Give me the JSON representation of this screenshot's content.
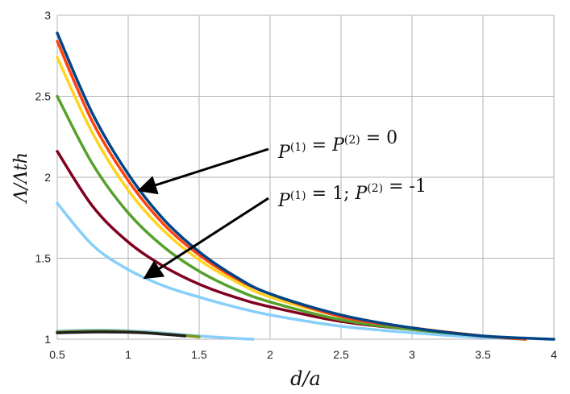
{
  "chart_data": {
    "type": "line",
    "xlabel": "d/a",
    "ylabel": "Λ/Λth",
    "xlim": [
      0.5,
      4
    ],
    "ylim": [
      1,
      3
    ],
    "x_ticks": [
      "0.5",
      "1",
      "1.5",
      "2",
      "2.5",
      "3",
      "3.5",
      "4"
    ],
    "y_ticks": [
      "1",
      "1.5",
      "2",
      "2.5",
      "3"
    ],
    "grid": true,
    "annotations": [
      {
        "text": "P(1) = P(2) = 0",
        "points_to": [
          1.08,
          1.92
        ]
      },
      {
        "text": "P(1) = 1; P(2) = -1",
        "points_to": [
          1.12,
          1.38
        ]
      }
    ],
    "series": [
      {
        "color": "#87cefa",
        "x": [
          0.5,
          0.75,
          1.0,
          1.25,
          1.5,
          1.75,
          2.0,
          2.5,
          3.0,
          3.5,
          3.8
        ],
        "y": [
          1.84,
          1.58,
          1.43,
          1.33,
          1.26,
          1.2,
          1.15,
          1.08,
          1.04,
          1.01,
          1.0
        ]
      },
      {
        "color": "#87cefa",
        "x": [
          0.5,
          0.7,
          0.9,
          1.1,
          1.3,
          1.5,
          1.7,
          1.88
        ],
        "y": [
          1.05,
          1.055,
          1.055,
          1.048,
          1.035,
          1.02,
          1.008,
          1.0
        ]
      },
      {
        "color": "#7a9a1a",
        "x": [
          0.5,
          0.7,
          0.9,
          1.1,
          1.3,
          1.5
        ],
        "y": [
          1.045,
          1.05,
          1.05,
          1.042,
          1.03,
          1.015
        ]
      },
      {
        "color": "#1f1f1f",
        "x": [
          0.5,
          0.8,
          1.1,
          1.4
        ],
        "y": [
          1.04,
          1.045,
          1.04,
          1.02
        ]
      },
      {
        "color": "#800020",
        "x": [
          0.5,
          0.75,
          1.0,
          1.25,
          1.5,
          1.75,
          2.0,
          2.5,
          3.0,
          3.5,
          3.8
        ],
        "y": [
          2.16,
          1.82,
          1.6,
          1.45,
          1.34,
          1.26,
          1.2,
          1.11,
          1.06,
          1.02,
          1.0
        ]
      },
      {
        "color": "#56a02c",
        "x": [
          0.5,
          0.75,
          1.0,
          1.25,
          1.5,
          1.75,
          2.0,
          2.5,
          3.0,
          3.5,
          3.8
        ],
        "y": [
          2.5,
          2.08,
          1.78,
          1.57,
          1.42,
          1.31,
          1.23,
          1.12,
          1.06,
          1.02,
          1.0
        ]
      },
      {
        "color": "#ffd320",
        "x": [
          0.5,
          0.75,
          1.0,
          1.25,
          1.5,
          1.75,
          2.0,
          2.5,
          3.0,
          3.5,
          3.8
        ],
        "y": [
          2.74,
          2.27,
          1.92,
          1.67,
          1.49,
          1.36,
          1.26,
          1.14,
          1.07,
          1.02,
          1.0
        ]
      },
      {
        "color": "#ff420e",
        "x": [
          0.5,
          0.75,
          1.0,
          1.25,
          1.5,
          1.75,
          2.0,
          2.5,
          3.0,
          3.5,
          3.8
        ],
        "y": [
          2.84,
          2.34,
          1.98,
          1.71,
          1.52,
          1.38,
          1.28,
          1.14,
          1.07,
          1.02,
          1.0
        ]
      },
      {
        "color": "#004586",
        "x": [
          0.5,
          0.75,
          1.0,
          1.25,
          1.5,
          1.75,
          2.0,
          2.5,
          3.0,
          3.5,
          4.0
        ],
        "y": [
          2.89,
          2.39,
          2.02,
          1.74,
          1.54,
          1.39,
          1.28,
          1.15,
          1.07,
          1.02,
          1.0
        ]
      }
    ]
  }
}
